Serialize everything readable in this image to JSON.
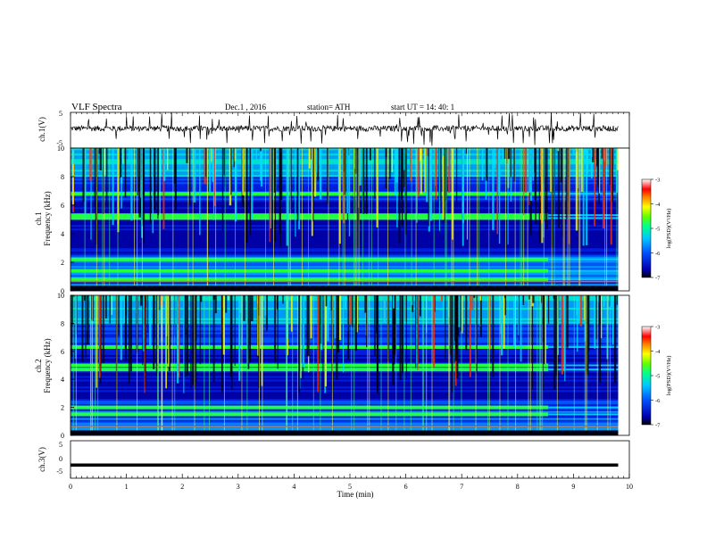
{
  "header": {
    "title": "VLF  Spectra",
    "date": "Dec.1  , 2016",
    "station": "station= ATH",
    "start": "start  UT  =    14: 40: 1"
  },
  "chart_data": [
    {
      "type": "line",
      "panel": "ch1",
      "ylabel": "ch.1(V)",
      "ylim": [
        -5,
        5
      ],
      "yticks": [
        "5",
        "-5"
      ],
      "description_level": 0.5,
      "line_color": "#000000"
    },
    {
      "type": "heatmap",
      "panel": "ch1-spectrogram",
      "ylabel_top": "ch.1",
      "ylabel": "Frequency  (kHz)",
      "ylim": [
        0,
        10
      ],
      "yticks": [
        "10",
        "8",
        "6",
        "4",
        "2",
        "0"
      ],
      "colorbar": {
        "label": "log(PSD)(V²/Hz)",
        "range": [
          -7,
          -3
        ],
        "ticks": [
          "-3",
          "-4",
          "-5",
          "-6",
          "-7"
        ]
      },
      "colors": [
        "#000000",
        "#0000aa",
        "#0033ff",
        "#00aaff",
        "#00ffaa",
        "#66ff00",
        "#ffff00",
        "#ff8800",
        "#ff0000",
        "#ffffff"
      ]
    },
    {
      "type": "heatmap",
      "panel": "ch2-spectrogram",
      "ylabel_top": "ch.2",
      "ylabel": "Frequency  (kHz)",
      "ylim": [
        0,
        10
      ],
      "yticks": [
        "10",
        "8",
        "6",
        "4",
        "2",
        "0"
      ],
      "colorbar": {
        "label": "log(PSD)(V²/Hz)",
        "range": [
          -7,
          -3
        ],
        "ticks": [
          "-3",
          "-4",
          "-5",
          "-6",
          "-7"
        ]
      }
    },
    {
      "type": "line",
      "panel": "ch3",
      "ylabel": "ch.3(V)",
      "ylim": [
        -5,
        5
      ],
      "yticks": [
        "5",
        "0",
        "-5"
      ],
      "level": -1.5
    }
  ],
  "xaxis": {
    "label": "Time  (min)",
    "range": [
      0,
      10
    ],
    "ticks": [
      "0",
      "1",
      "2",
      "3",
      "4",
      "5",
      "6",
      "7",
      "8",
      "9",
      "10"
    ],
    "data_end": 9.8,
    "change_time": 8.55
  }
}
